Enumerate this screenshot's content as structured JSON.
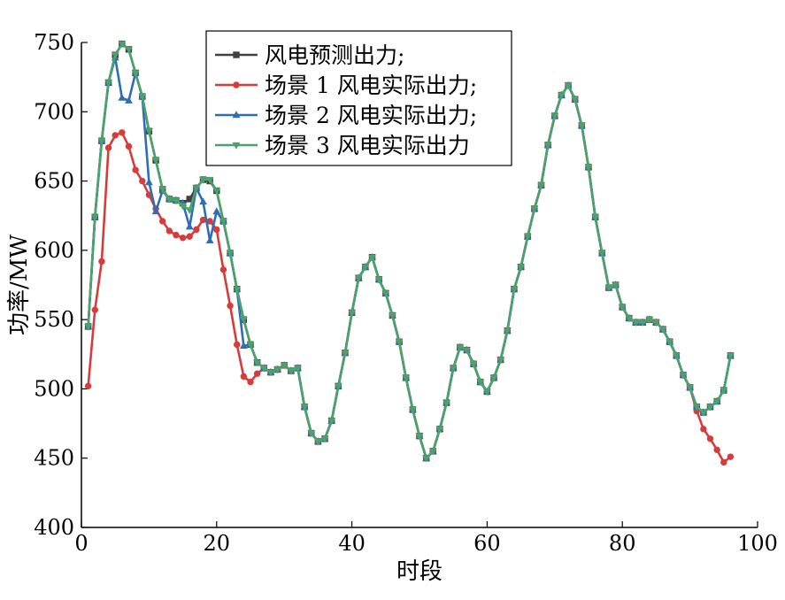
{
  "chart_data": {
    "type": "line",
    "title": "",
    "xlabel": "时段",
    "ylabel": "功率/MW",
    "xlim": [
      0,
      100
    ],
    "ylim": [
      400,
      750
    ],
    "xticks": [
      0,
      20,
      40,
      60,
      80,
      100
    ],
    "yticks": [
      400,
      450,
      500,
      550,
      600,
      650,
      700,
      750
    ],
    "grid": false,
    "legend_position": "top-center",
    "x": [
      1,
      2,
      3,
      4,
      5,
      6,
      7,
      8,
      9,
      10,
      11,
      12,
      13,
      14,
      15,
      16,
      17,
      18,
      19,
      20,
      21,
      22,
      23,
      24,
      25,
      26,
      27,
      28,
      29,
      30,
      31,
      32,
      33,
      34,
      35,
      36,
      37,
      38,
      39,
      40,
      41,
      42,
      43,
      44,
      45,
      46,
      47,
      48,
      49,
      50,
      51,
      52,
      53,
      54,
      55,
      56,
      57,
      58,
      59,
      60,
      61,
      62,
      63,
      64,
      65,
      66,
      67,
      68,
      69,
      70,
      71,
      72,
      73,
      74,
      75,
      76,
      77,
      78,
      79,
      80,
      81,
      82,
      83,
      84,
      85,
      86,
      87,
      88,
      89,
      90,
      91,
      92,
      93,
      94,
      95,
      96
    ],
    "series": [
      {
        "name": "风电预测出力;",
        "color": "#404040",
        "marker": "square",
        "values": [
          545,
          624,
          679,
          721,
          741,
          749,
          745,
          728,
          711,
          686,
          665,
          644,
          637,
          636,
          634,
          637,
          645,
          651,
          650,
          643,
          621,
          598,
          572,
          550,
          532,
          519,
          515,
          512,
          514,
          517,
          513,
          515,
          487,
          468,
          462,
          464,
          477,
          502,
          526,
          555,
          580,
          588,
          595,
          579,
          569,
          553,
          534,
          508,
          485,
          466,
          450,
          455,
          471,
          490,
          515,
          530,
          528,
          518,
          505,
          498,
          508,
          521,
          542,
          572,
          588,
          610,
          630,
          647,
          676,
          697,
          712,
          719,
          709,
          690,
          660,
          624,
          598,
          573,
          575,
          559,
          551,
          548,
          548,
          550,
          548,
          543,
          534,
          524,
          510,
          501,
          487,
          483,
          487,
          491,
          499,
          524
        ]
      },
      {
        "name": "场景 1 风电实际出力;",
        "color": "#d63c3c",
        "marker": "circle",
        "values": [
          502,
          557,
          592,
          674,
          683,
          685,
          675,
          658,
          650,
          640,
          630,
          621,
          614,
          611,
          609,
          610,
          615,
          622,
          621,
          615,
          586,
          560,
          532,
          509,
          505,
          511,
          515,
          512,
          514,
          517,
          513,
          515,
          487,
          468,
          462,
          464,
          477,
          502,
          526,
          555,
          580,
          588,
          595,
          579,
          569,
          553,
          534,
          508,
          485,
          466,
          450,
          455,
          471,
          490,
          515,
          530,
          528,
          518,
          505,
          498,
          508,
          521,
          542,
          572,
          588,
          610,
          630,
          647,
          676,
          697,
          712,
          719,
          709,
          690,
          660,
          624,
          598,
          573,
          575,
          559,
          551,
          548,
          548,
          550,
          548,
          543,
          534,
          524,
          510,
          501,
          484,
          471,
          464,
          456,
          447,
          451
        ]
      },
      {
        "name": "场景 2 风电实际出力;",
        "color": "#2f6eb5",
        "marker": "triangle-up",
        "values": [
          545,
          624,
          679,
          721,
          739,
          710,
          708,
          728,
          711,
          649,
          628,
          643,
          637,
          636,
          634,
          617,
          645,
          635,
          607,
          628,
          621,
          598,
          572,
          531,
          532,
          519,
          515,
          512,
          514,
          517,
          513,
          515,
          487,
          468,
          462,
          464,
          477,
          502,
          526,
          555,
          580,
          588,
          595,
          579,
          569,
          553,
          534,
          508,
          485,
          466,
          450,
          455,
          471,
          490,
          515,
          530,
          528,
          518,
          505,
          498,
          508,
          521,
          542,
          572,
          588,
          610,
          630,
          647,
          676,
          697,
          712,
          719,
          709,
          690,
          660,
          624,
          598,
          573,
          575,
          559,
          551,
          548,
          548,
          550,
          548,
          543,
          534,
          524,
          510,
          501,
          487,
          483,
          487,
          491,
          499,
          524
        ]
      },
      {
        "name": "场景 3 风电实际出力",
        "color": "#4aa36a",
        "marker": "triangle-down",
        "values": [
          545,
          624,
          679,
          721,
          741,
          749,
          745,
          728,
          711,
          686,
          665,
          644,
          637,
          636,
          632,
          629,
          645,
          651,
          651,
          643,
          621,
          598,
          572,
          550,
          532,
          519,
          515,
          512,
          514,
          517,
          513,
          515,
          487,
          468,
          462,
          464,
          477,
          502,
          526,
          555,
          580,
          588,
          595,
          579,
          569,
          553,
          534,
          508,
          485,
          466,
          450,
          455,
          471,
          490,
          515,
          530,
          528,
          518,
          505,
          498,
          508,
          521,
          542,
          572,
          588,
          610,
          630,
          647,
          676,
          697,
          712,
          719,
          709,
          690,
          660,
          624,
          598,
          573,
          575,
          559,
          551,
          548,
          548,
          550,
          548,
          543,
          534,
          524,
          510,
          501,
          487,
          483,
          487,
          491,
          499,
          524
        ]
      }
    ]
  }
}
